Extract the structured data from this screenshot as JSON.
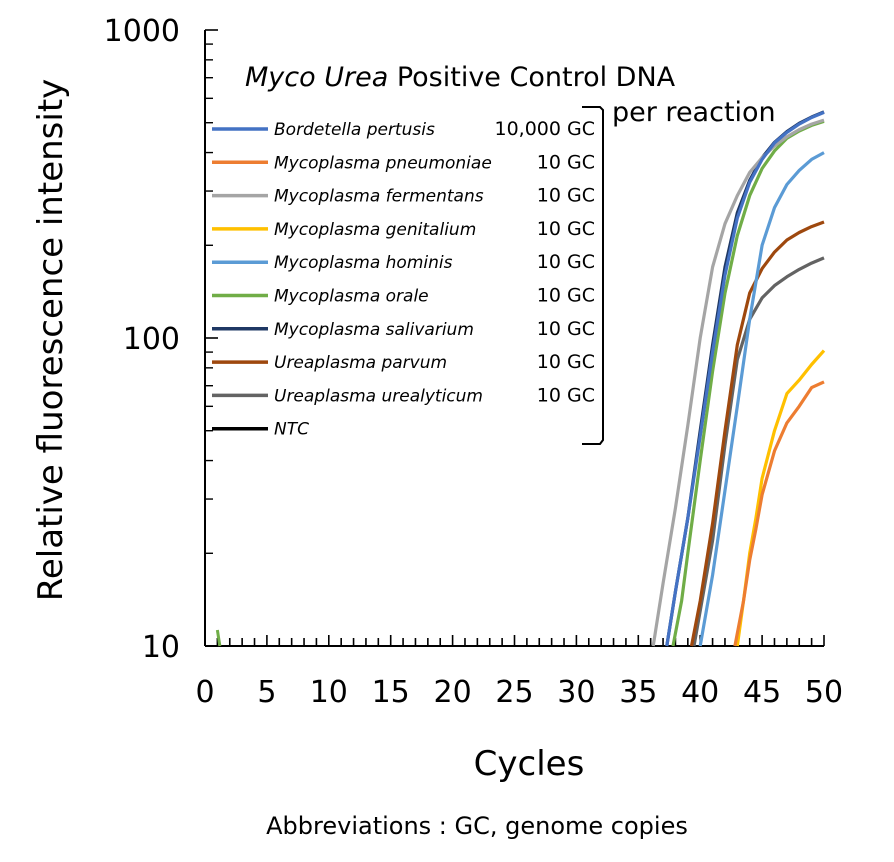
{
  "chart_data": {
    "type": "line",
    "title": {
      "part1_italic": "Myco Urea",
      "part2": " Positive Control DNA",
      "line2": "per reaction"
    },
    "xlabel": "Cycles",
    "ylabel": "Relative fluorescence intensity",
    "xlim": [
      0,
      50
    ],
    "ylim": [
      10,
      1000
    ],
    "yscale": "log",
    "x_ticks": [
      "0",
      "5",
      "10",
      "15",
      "20",
      "25",
      "30",
      "35",
      "40",
      "45",
      "50"
    ],
    "y_ticks": [
      "10",
      "100",
      "1000"
    ],
    "grid": false,
    "legend_position": "upper-left",
    "series": [
      {
        "name": "Bordetella pertusis",
        "conc": "10,000  GC",
        "color": "#4472C4",
        "x": [
          37.3,
          38,
          39,
          40,
          41,
          42,
          43,
          44,
          45,
          46,
          47,
          48,
          49,
          50
        ],
        "y": [
          10,
          15,
          26,
          48,
          90,
          160,
          245,
          320,
          380,
          430,
          465,
          495,
          520,
          540
        ]
      },
      {
        "name": "Mycoplasma pneumoniae",
        "conc": "10   GC",
        "color": "#ED7D31",
        "x": [
          42.8,
          43.5,
          44,
          44.5,
          45,
          46,
          47,
          48,
          49,
          50
        ],
        "y": [
          10,
          14,
          19,
          24,
          31,
          43,
          53,
          60,
          69,
          72
        ]
      },
      {
        "name": "Mycoplasma fermentans",
        "conc": "10   GC",
        "color": "#A5A5A5",
        "x": [
          36.2,
          37,
          38,
          39,
          40,
          41,
          42,
          43,
          44,
          45,
          46,
          47,
          48,
          49,
          50
        ],
        "y": [
          10,
          16,
          28,
          52,
          100,
          170,
          235,
          290,
          345,
          385,
          420,
          450,
          475,
          495,
          510
        ]
      },
      {
        "name": "Mycoplasma genitalium",
        "conc": "10   GC",
        "color": "#FFC000",
        "x": [
          43,
          43.5,
          44,
          44.5,
          45,
          46,
          47,
          48,
          49,
          50
        ],
        "y": [
          10,
          14,
          20,
          26,
          35,
          50,
          66,
          73,
          82,
          91
        ]
      },
      {
        "name": "Mycoplasma hominis",
        "conc": "10   GC",
        "color": "#5B9BD5",
        "x": [
          40,
          41,
          42,
          43,
          44,
          45,
          46,
          47,
          48,
          49,
          50
        ],
        "y": [
          10,
          17,
          32,
          60,
          115,
          200,
          265,
          315,
          350,
          380,
          400
        ]
      },
      {
        "name": "Mycoplasma orale",
        "conc": "10   GC",
        "color": "#70AD47",
        "x": [
          37.8,
          38.5,
          39,
          40,
          41,
          42,
          43,
          44,
          45,
          46,
          47,
          48,
          49,
          50
        ],
        "y": [
          10,
          14,
          20,
          40,
          78,
          140,
          215,
          290,
          355,
          405,
          445,
          470,
          490,
          505
        ]
      },
      {
        "name": "Mycoplasma salivarium",
        "conc": "10   GC",
        "color": "#1F3864",
        "x": [
          37.3,
          38,
          39,
          40,
          41,
          42,
          43,
          44,
          45,
          46,
          47,
          48,
          49,
          50
        ],
        "y": [
          10,
          15,
          26,
          50,
          95,
          170,
          255,
          325,
          385,
          432,
          468,
          498,
          522,
          542
        ]
      },
      {
        "name": "Ureaplasma parvum",
        "conc": "10   GC",
        "color": "#9E480E",
        "x": [
          39.3,
          40,
          41,
          42,
          43,
          44,
          45,
          46,
          47,
          48,
          49,
          50
        ],
        "y": [
          10,
          14,
          25,
          50,
          95,
          140,
          168,
          190,
          208,
          220,
          230,
          238
        ]
      },
      {
        "name": "Ureaplasma urealyticum",
        "conc": "10   GC",
        "color": "#636363",
        "x": [
          39.5,
          40,
          41,
          42,
          43,
          44,
          45,
          46,
          47,
          48,
          49,
          50
        ],
        "y": [
          10,
          13,
          22,
          45,
          85,
          115,
          135,
          148,
          158,
          167,
          175,
          182
        ]
      },
      {
        "name": "NTC",
        "conc": "",
        "color": "#000000",
        "x": [],
        "y": []
      }
    ]
  },
  "footnote": "Abbreviations : GC, genome copies"
}
